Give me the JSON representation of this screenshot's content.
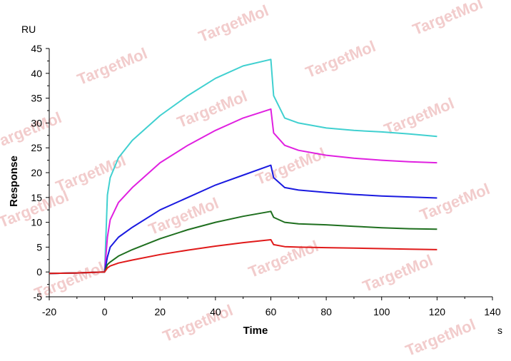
{
  "watermark": "TargetMol",
  "chart_data": {
    "type": "line",
    "title": "",
    "xlabel": "Time",
    "ylabel": "Response",
    "x_unit": "s",
    "y_unit": "RU",
    "xlim": [
      -20,
      140
    ],
    "ylim": [
      -5,
      45
    ],
    "xticks": [
      -20,
      0,
      20,
      40,
      60,
      80,
      100,
      120,
      140
    ],
    "yticks": [
      -5,
      0,
      5,
      10,
      15,
      20,
      25,
      30,
      35,
      40,
      45
    ],
    "grid": false,
    "legend": "none",
    "x": [
      -20,
      -10,
      0,
      1,
      2,
      5,
      10,
      20,
      30,
      40,
      50,
      60,
      61,
      65,
      70,
      80,
      90,
      100,
      110,
      120
    ],
    "series": [
      {
        "color": "#40d0d0",
        "values": [
          -0.3,
          -0.2,
          0,
          15.5,
          19,
          23,
          26.5,
          31.5,
          35.5,
          39,
          41.5,
          42.8,
          35.5,
          31,
          30,
          29,
          28.5,
          28.2,
          27.8,
          27.3
        ]
      },
      {
        "color": "#e020e0",
        "values": [
          -0.3,
          -0.2,
          0,
          7,
          10.5,
          14,
          17,
          22,
          25.5,
          28.5,
          31,
          32.8,
          28,
          25.5,
          24.5,
          23.5,
          22.9,
          22.5,
          22.2,
          22.0
        ]
      },
      {
        "color": "#1a1ae0",
        "values": [
          -0.3,
          -0.2,
          0,
          3,
          5,
          7,
          9,
          12.5,
          15,
          17.5,
          19.5,
          21.5,
          19,
          17,
          16.5,
          16,
          15.6,
          15.3,
          15.1,
          14.9
        ]
      },
      {
        "color": "#1f6f1f",
        "values": [
          -0.3,
          -0.2,
          0,
          1.5,
          2,
          3.2,
          4.5,
          6.7,
          8.5,
          10,
          11.2,
          12.2,
          11,
          10,
          9.7,
          9.5,
          9.2,
          8.9,
          8.7,
          8.6
        ]
      },
      {
        "color": "#e01a1a",
        "values": [
          -0.3,
          -0.2,
          0,
          0.8,
          1.2,
          1.8,
          2.4,
          3.5,
          4.4,
          5.2,
          5.9,
          6.5,
          5.5,
          5.1,
          5.0,
          4.9,
          4.8,
          4.7,
          4.6,
          4.5
        ]
      }
    ]
  }
}
